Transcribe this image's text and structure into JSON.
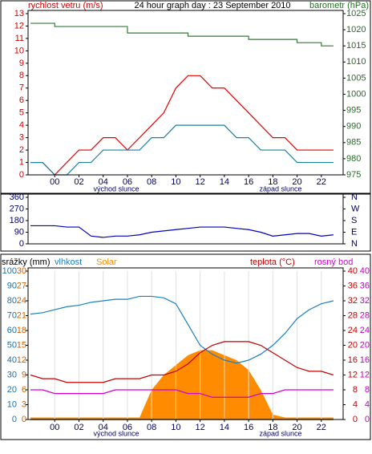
{
  "chart_data": [
    {
      "type": "line",
      "title": "24 hour graph day : 23 September 2010",
      "ylabel": "rychlost vetru (m/s)",
      "y2label": "barometr (hPa)",
      "annotations": [
        "východ slunce",
        "západ slunce"
      ],
      "x": [
        -2,
        -1,
        0,
        1,
        2,
        3,
        4,
        5,
        6,
        7,
        8,
        9,
        10,
        11,
        12,
        13,
        14,
        15,
        16,
        17,
        18,
        19,
        20,
        21,
        22,
        23
      ],
      "xlim": [
        -2.2,
        23.8
      ],
      "xticks": [
        {
          "value": 0,
          "label": "00"
        },
        {
          "value": 2,
          "label": "02"
        },
        {
          "value": 4,
          "label": "04"
        },
        {
          "value": 6,
          "label": "06"
        },
        {
          "value": 8,
          "label": "08"
        },
        10,
        12,
        14,
        16,
        18,
        20,
        22
      ],
      "ylim": [
        0,
        13
      ],
      "yticks": [
        0,
        1,
        2,
        3,
        4,
        5,
        6,
        7,
        8,
        9,
        10,
        11,
        12,
        13
      ],
      "ycolor": "#d00000",
      "y2lim": [
        975,
        1025
      ],
      "y2ticks": [
        975,
        980,
        985,
        990,
        995,
        1000,
        1005,
        1010,
        1015,
        1020,
        1025
      ],
      "y2color": "#207020",
      "series": [
        {
          "color": "#e00000",
          "values": [
            1,
            1,
            0,
            1,
            2,
            2,
            3,
            3,
            2,
            3,
            4,
            5,
            7,
            8,
            8,
            7,
            7,
            6,
            5,
            4,
            3,
            3,
            2,
            2,
            2,
            2
          ]
        },
        {
          "color": "#1a7fa0",
          "values": [
            1,
            1,
            0,
            0,
            1,
            1,
            2,
            2,
            2,
            2,
            3,
            3,
            4,
            4,
            4,
            4,
            4,
            3,
            3,
            2,
            2,
            2,
            1,
            1,
            1,
            1
          ]
        },
        {
          "color": "#2e7d32",
          "axis": "y2",
          "step": true,
          "values": [
            1022,
            1022,
            1021,
            1021,
            1021,
            1021,
            1021,
            1021,
            1019,
            1019,
            1019,
            1019,
            1019,
            1018,
            1018,
            1018,
            1018,
            1018,
            1017,
            1017,
            1017,
            1017,
            1016,
            1016,
            1015,
            1015
          ]
        }
      ]
    },
    {
      "type": "line",
      "x": [
        -2,
        -1,
        0,
        1,
        2,
        3,
        4,
        5,
        6,
        7,
        8,
        9,
        10,
        11,
        12,
        13,
        14,
        15,
        16,
        17,
        18,
        19,
        20,
        21,
        22,
        23
      ],
      "xlim": [
        -2.2,
        23.8
      ],
      "ylim": [
        0,
        360
      ],
      "yticks": [
        0,
        90,
        180,
        270,
        360
      ],
      "ycolor": "#000060",
      "y2lim": [
        0,
        360
      ],
      "y2ticks": [
        {
          "value": 0,
          "label": "N"
        },
        {
          "value": 90,
          "label": "E"
        },
        {
          "value": 180,
          "label": "S"
        },
        {
          "value": 270,
          "label": "W"
        },
        {
          "value": 360,
          "label": "N"
        }
      ],
      "y2color": "#000060",
      "series": [
        {
          "color": "#0000c0",
          "values": [
            140,
            140,
            140,
            130,
            130,
            60,
            50,
            60,
            60,
            70,
            90,
            100,
            110,
            120,
            130,
            130,
            130,
            120,
            110,
            90,
            60,
            70,
            80,
            80,
            60,
            70
          ]
        }
      ]
    },
    {
      "type": "line",
      "annotations": [
        "východ slunce",
        "západ slunce"
      ],
      "grid": "x",
      "x": [
        -2,
        -1,
        0,
        1,
        2,
        3,
        4,
        5,
        6,
        7,
        8,
        9,
        10,
        11,
        12,
        13,
        14,
        15,
        16,
        17,
        18,
        19,
        20,
        21,
        22,
        23
      ],
      "xlim": [
        -2.2,
        23.8
      ],
      "xticks": [
        {
          "value": 0,
          "label": "00"
        },
        {
          "value": 2,
          "label": "02"
        },
        {
          "value": 4,
          "label": "04"
        },
        {
          "value": 6,
          "label": "06"
        },
        {
          "value": 8,
          "label": "08"
        },
        10,
        12,
        14,
        16,
        18,
        20,
        22
      ],
      "ylim": [
        0,
        100
      ],
      "yticks": [
        0,
        10,
        20,
        30,
        40,
        50,
        60,
        70,
        80,
        90,
        100
      ],
      "ycolor": "#1a6fb0",
      "y3lim": [
        0,
        30
      ],
      "y3ticks": [
        0,
        3,
        6,
        9,
        12,
        15,
        18,
        21,
        24,
        27,
        30
      ],
      "y3color": "#d06000",
      "y2lim": [
        0,
        40
      ],
      "y2ticks": [
        0,
        4,
        8,
        12,
        16,
        20,
        24,
        28,
        32,
        36,
        40
      ],
      "y2color": "#c00000",
      "y4lim": [
        0,
        40
      ],
      "y4ticks": [
        0,
        4,
        8,
        12,
        16,
        20,
        24,
        28,
        32,
        36,
        40
      ],
      "y4color": "#c000c0",
      "y5lim": [
        0,
        10
      ],
      "series": [
        {
          "name": "srážky (mm)",
          "color": "#000000",
          "axis": "y5",
          "values": [
            0,
            0,
            0,
            0,
            0,
            0,
            0,
            0,
            0,
            0,
            0,
            0,
            0,
            0,
            0,
            0,
            0,
            0,
            0,
            0,
            0,
            0,
            0,
            0,
            0,
            0
          ]
        },
        {
          "name": "vlhkost",
          "color": "#1a7fc0",
          "values": [
            71,
            72,
            74,
            76,
            77,
            79,
            80,
            81,
            81,
            83,
            83,
            82,
            78,
            64,
            50,
            44,
            40,
            38,
            40,
            44,
            50,
            58,
            68,
            74,
            78,
            80
          ]
        },
        {
          "name": "Solar",
          "color": "#ff8c00",
          "axis": "y3",
          "fill": true,
          "values": [
            0.4,
            0.4,
            0.4,
            0.4,
            0.4,
            0.4,
            0.4,
            0.4,
            0.4,
            0.4,
            6,
            9,
            11,
            13,
            14,
            14,
            13,
            12,
            10,
            6,
            1,
            0.4,
            0.4,
            0.4,
            0.4,
            0.4
          ]
        },
        {
          "name": "teplota (°C)",
          "color": "#c00000",
          "axis": "y2",
          "values": [
            12,
            11,
            11,
            10,
            10,
            10,
            10,
            11,
            11,
            11,
            12,
            12,
            13,
            15,
            18,
            20,
            21,
            21,
            21,
            20,
            18,
            16,
            14,
            13,
            13,
            12
          ]
        },
        {
          "name": "rosný bod",
          "color": "#d000d0",
          "axis": "y4",
          "values": [
            8,
            8,
            7,
            7,
            7,
            7,
            7,
            8,
            8,
            8,
            8,
            8,
            8,
            7,
            7,
            6,
            6,
            6,
            6,
            7,
            7,
            8,
            8,
            8,
            8,
            8
          ]
        }
      ]
    }
  ]
}
